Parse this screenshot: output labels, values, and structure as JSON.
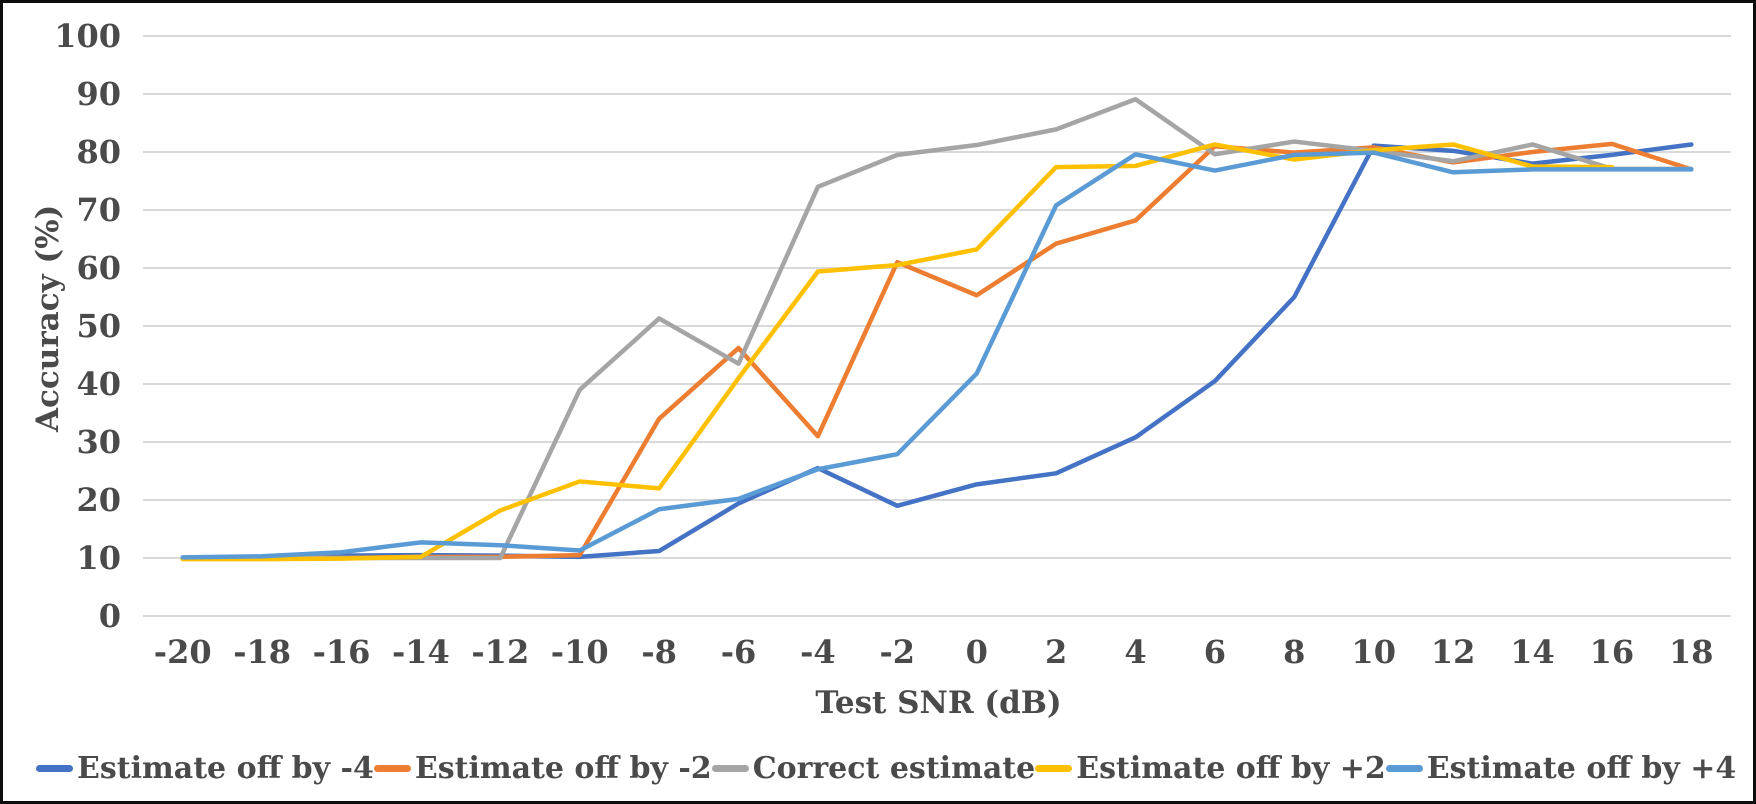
{
  "chart_data": {
    "type": "line",
    "title": "",
    "xlabel": "Test SNR (dB)",
    "ylabel": "Accuracy (%)",
    "x": [
      -20,
      -18,
      -16,
      -14,
      -12,
      -10,
      -8,
      -6,
      -4,
      -2,
      0,
      2,
      4,
      6,
      8,
      10,
      12,
      14,
      16,
      18
    ],
    "ylim": [
      0,
      100
    ],
    "ytick_step": 10,
    "grid": true,
    "legend_position": "bottom",
    "series": [
      {
        "name": "Estimate off by -4",
        "color": "#4472C4",
        "values": [
          10,
          10.2,
          10.4,
          10.5,
          10.4,
          10.2,
          11.2,
          19.4,
          25.5,
          19,
          22.7,
          24.6,
          30.8,
          40.5,
          55,
          81.1,
          80.2,
          78,
          79.5,
          81.3
        ]
      },
      {
        "name": "Estimate off by -2",
        "color": "#ED7D31",
        "values": [
          10,
          10,
          10,
          10.2,
          10.2,
          10.5,
          34,
          46.2,
          31,
          61,
          55.3,
          64.2,
          68.2,
          81,
          79.9,
          80.8,
          78.2,
          80,
          81.4,
          77
        ]
      },
      {
        "name": "Correct estimate",
        "color": "#A5A5A5",
        "values": [
          10,
          10,
          10,
          10,
          10,
          39,
          51.3,
          43.5,
          74,
          79.5,
          81.2,
          83.9,
          89.1,
          79.6,
          81.8,
          80.2,
          78.4,
          81.3,
          77.1,
          77.1
        ]
      },
      {
        "name": "Estimate off by +2",
        "color": "#FFC000",
        "values": [
          9.8,
          9.8,
          9.9,
          10.2,
          18.2,
          23.2,
          22,
          41,
          59.4,
          60.5,
          63.2,
          77.4,
          77.6,
          81.3,
          78.7,
          80.3,
          81.3,
          77.5,
          77.4,
          null
        ]
      },
      {
        "name": "Estimate off by +4",
        "color": "#5B9BD5",
        "values": [
          10.1,
          10.3,
          11,
          12.7,
          12.2,
          11.3,
          18.4,
          20.2,
          25.3,
          27.9,
          41.8,
          70.8,
          79.6,
          76.8,
          79.5,
          79.9,
          76.5,
          77,
          77,
          77
        ]
      }
    ]
  },
  "style": {
    "gridline_color": "#d9d9d9",
    "text_color": "#4a4a4a",
    "background_color": "#ffffff",
    "border_color": "#0d0d0d"
  }
}
